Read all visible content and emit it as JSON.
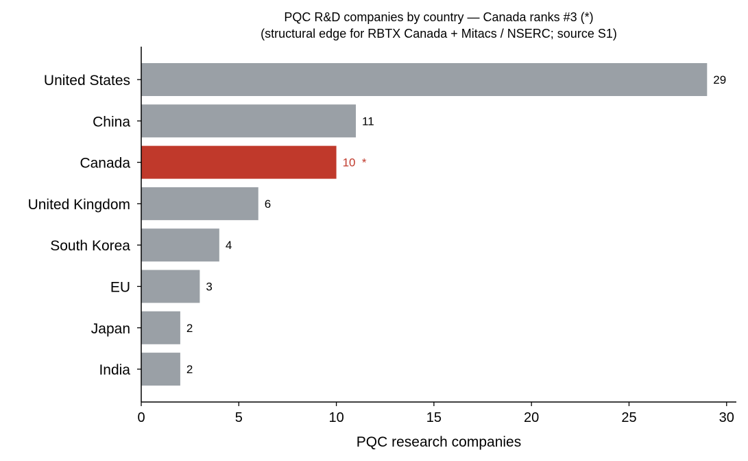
{
  "chart_data": {
    "type": "bar",
    "orientation": "horizontal",
    "title": "PQC R&D companies by country — Canada ranks #3 (*)",
    "subtitle": "(structural edge for RBTX Canada + Mitacs / NSERC; source S1)",
    "xlabel": "PQC research companies",
    "ylabel": "",
    "xlim": [
      0,
      30.5
    ],
    "xticks": [
      0,
      5,
      10,
      15,
      20,
      25,
      30
    ],
    "categories": [
      "United States",
      "China",
      "Canada",
      "United Kingdom",
      "South Korea",
      "EU",
      "Japan",
      "India"
    ],
    "values": [
      29,
      11,
      10,
      6,
      4,
      3,
      2,
      2
    ],
    "data_labels": [
      "29",
      "11",
      "10  *",
      "6",
      "4",
      "3",
      "2",
      "2"
    ],
    "highlight_index": 2,
    "colors": {
      "default": "#9aa0a6",
      "highlight": "#c0392b",
      "highlight_label": "#c0392b",
      "label": "#000000",
      "axis": "#000000"
    },
    "grid": false,
    "legend": "none"
  }
}
